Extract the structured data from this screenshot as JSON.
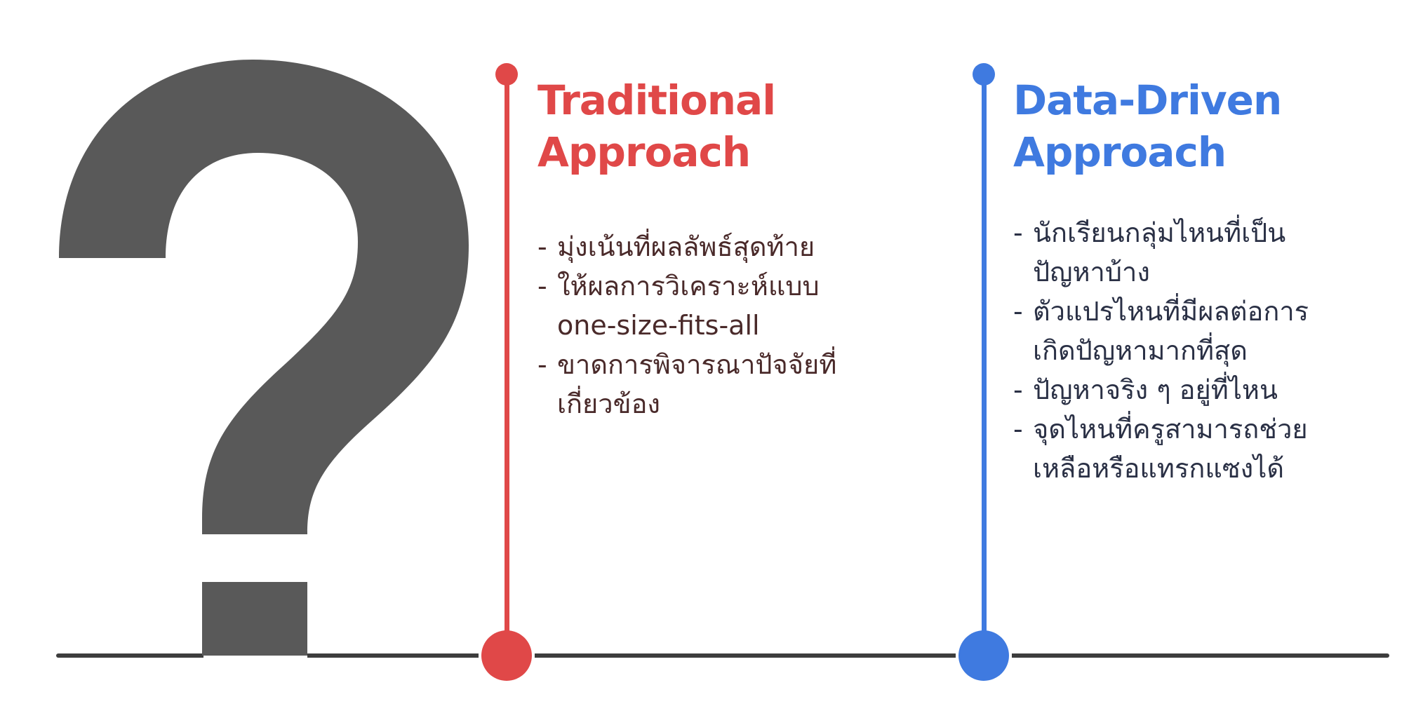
{
  "question_mark": {
    "glyph": "?",
    "color": "#595959"
  },
  "timeline": {
    "line_color": "#3d3d3d"
  },
  "columns": [
    {
      "title_line1": "Traditional",
      "title_line2": "Approach",
      "accent": "#e04848",
      "text_color": "#4a2a2a",
      "bullets": [
        "มุ่งเน้นที่ผลลัพธ์สุดท้าย",
        "ให้ผลการวิเคราะห์แบบ\none-size-fits-all",
        "ขาดการพิจารณาปัจจัยที่\nเกี่ยวข้อง"
      ]
    },
    {
      "title_line1": "Data-Driven",
      "title_line2": "Approach",
      "accent": "#3f7ae0",
      "text_color": "#2a3045",
      "bullets": [
        "นักเรียนกลุ่มไหนที่เป็น\nปัญหาบ้าง",
        "ตัวแปรไหนที่มีผลต่อการ\nเกิดปัญหามากที่สุด",
        "ปัญหาจริง ๆ อยู่ที่ไหน",
        "จุดไหนที่ครูสามารถช่วย\nเหลือหรือแทรกแซงได้"
      ]
    }
  ]
}
